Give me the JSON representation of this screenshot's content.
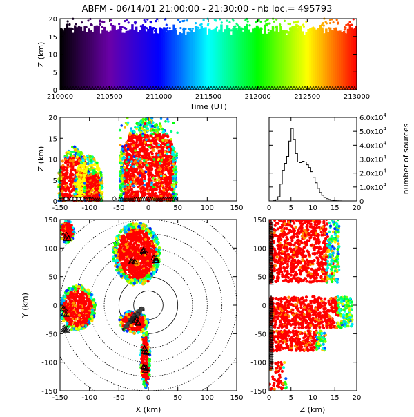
{
  "title": "ABFM - 06/14/01 21:00:00 - 21:30:00 - nb loc.= 495793",
  "chart_data": [
    {
      "id": "time-height",
      "type": "scatter",
      "xlabel": "Time (UT)",
      "ylabel": "Z (km)",
      "xlim": [
        210000,
        213000
      ],
      "ylim": [
        0,
        20
      ],
      "xticks": [
        210000,
        210500,
        211000,
        211500,
        212000,
        212500,
        213000
      ],
      "yticks": [
        0,
        5,
        10,
        15,
        20
      ],
      "color_by": "time",
      "colormap": [
        "#000000",
        "#6a00a8",
        "#0000ff",
        "#00ffff",
        "#00ff00",
        "#ffff00",
        "#ff0000"
      ],
      "marker": "triangle",
      "marker_y": 0
    },
    {
      "id": "x-height",
      "type": "scatter",
      "xlabel": "",
      "ylabel": "Z (km)",
      "xlim": [
        -150,
        150
      ],
      "ylim": [
        0,
        20
      ],
      "xticks": [
        -150,
        -100,
        -50,
        0,
        50,
        100,
        150
      ],
      "yticks": [
        0,
        5,
        10,
        15,
        20
      ],
      "clusters": [
        {
          "x": [
            -150,
            -105
          ],
          "z": [
            0,
            14
          ]
        },
        {
          "x": [
            -125,
            -80
          ],
          "z": [
            0,
            12
          ]
        },
        {
          "x": [
            -45,
            45
          ],
          "z": [
            0,
            20
          ]
        }
      ]
    },
    {
      "id": "altitude-histogram",
      "type": "line",
      "xlabel": "",
      "ylabel": "number of sources",
      "xlim": [
        0,
        20
      ],
      "ylim": [
        0,
        60000
      ],
      "xticks": [
        0,
        5,
        10,
        15,
        20
      ],
      "yticks": [
        0,
        10000,
        20000,
        30000,
        40000,
        50000,
        60000
      ],
      "ytick_labels": [
        "0",
        "1.0x10",
        "2.0x10",
        "3.0x10",
        "4.0x10",
        "5.0x10",
        "6.0x10"
      ],
      "ytick_exponent": "4",
      "x": [
        0,
        0.5,
        1,
        1.5,
        2,
        2.5,
        3,
        3.5,
        4,
        4.5,
        5,
        5.5,
        6,
        6.5,
        7,
        7.5,
        8,
        8.5,
        9,
        9.5,
        10,
        10.5,
        11,
        11.5,
        12,
        12.5,
        13,
        13.5,
        14,
        14.5,
        15,
        15.5,
        16,
        16.5,
        17,
        17.5,
        18,
        18.5,
        19,
        19.5
      ],
      "values": [
        0,
        0,
        200,
        800,
        3000,
        12000,
        22000,
        27000,
        32000,
        43000,
        52000,
        44000,
        34000,
        28000,
        27500,
        28500,
        28000,
        26000,
        24000,
        21000,
        17000,
        13000,
        9000,
        6000,
        4000,
        2500,
        1600,
        1000,
        600,
        400,
        200,
        100,
        50,
        0,
        0,
        0,
        0,
        0,
        0,
        0
      ]
    },
    {
      "id": "plan-view",
      "type": "scatter",
      "xlabel": "X (km)",
      "ylabel": "Y (km)",
      "xlim": [
        -150,
        150
      ],
      "ylim": [
        -150,
        150
      ],
      "xticks": [
        -150,
        -100,
        -50,
        0,
        50,
        100,
        150
      ],
      "yticks": [
        -150,
        -100,
        -50,
        0,
        50,
        100,
        150
      ],
      "range_rings_km": [
        25,
        50,
        75,
        100,
        125,
        150,
        175
      ],
      "clusters": [
        {
          "x": -20,
          "y": 90,
          "rx": 40,
          "ry": 55
        },
        {
          "x": -120,
          "y": -5,
          "rx": 30,
          "ry": 40
        },
        {
          "x": -25,
          "y": -30,
          "rx": 25,
          "ry": 20
        },
        {
          "x": -5,
          "y": -95,
          "rx": 8,
          "ry": 50
        },
        {
          "x": -138,
          "y": 128,
          "rx": 12,
          "ry": 20
        }
      ],
      "stations": [
        {
          "x": -140,
          "y": 120
        },
        {
          "x": -142,
          "y": -10
        },
        {
          "x": -140,
          "y": -40
        },
        {
          "x": -25,
          "y": 75
        },
        {
          "x": 10,
          "y": 80
        },
        {
          "x": -10,
          "y": 95
        },
        {
          "x": -20,
          "y": -28
        },
        {
          "x": -5,
          "y": -80
        },
        {
          "x": -5,
          "y": -110
        }
      ]
    },
    {
      "id": "height-y",
      "type": "scatter",
      "xlabel": "Z (km)",
      "ylabel": "",
      "xlim": [
        0,
        20
      ],
      "ylim": [
        -150,
        150
      ],
      "xticks": [
        0,
        5,
        10,
        15,
        20
      ],
      "yticks": [
        -150,
        -100,
        -50,
        0,
        50,
        100,
        150
      ]
    }
  ]
}
